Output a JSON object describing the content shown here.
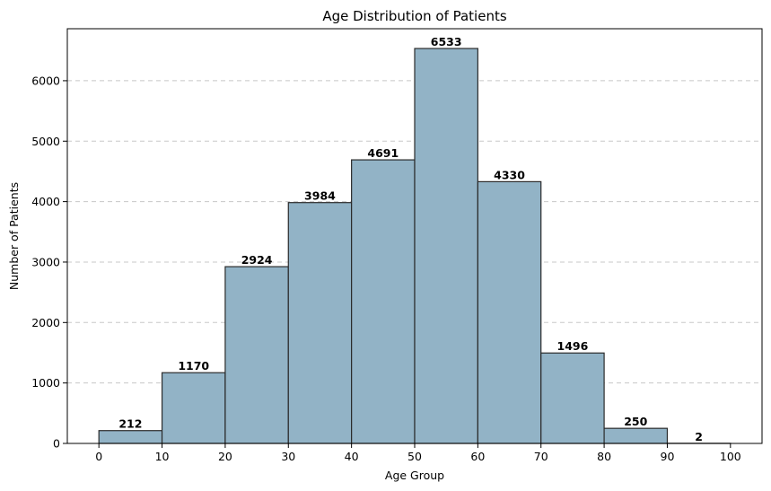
{
  "chart_data": {
    "type": "bar",
    "title": "Age Distribution of Patients",
    "xlabel": "Age Group",
    "ylabel": "Number of Patients",
    "bin_edges": [
      0,
      10,
      20,
      30,
      40,
      50,
      60,
      70,
      80,
      90,
      100
    ],
    "values": [
      212,
      1170,
      2924,
      3984,
      4691,
      6533,
      4330,
      1496,
      250,
      2
    ],
    "xlim": [
      -5,
      105
    ],
    "ylim": [
      0,
      6860
    ],
    "xticks": [
      0,
      10,
      20,
      30,
      40,
      50,
      60,
      70,
      80,
      90,
      100
    ],
    "yticks": [
      0,
      1000,
      2000,
      3000,
      4000,
      5000,
      6000
    ],
    "grid": "y-dashed",
    "bar_color": "#92b3c6",
    "bar_edge_color": "#2b2b2b",
    "grid_color": "#c8c8c8"
  }
}
